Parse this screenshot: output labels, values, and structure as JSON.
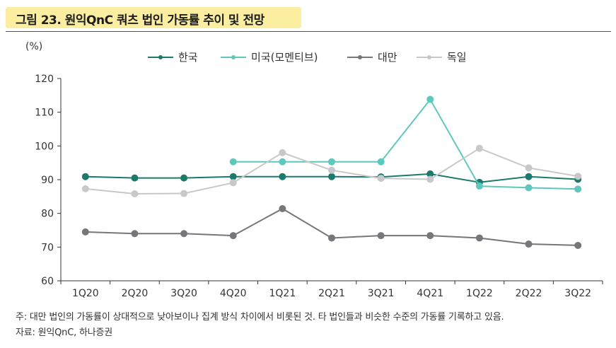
{
  "header": {
    "title": "그림 23. 원익QnC 쿼츠 법인 가동률 추이 및 전망"
  },
  "chart_data": {
    "type": "line",
    "title": "그림 23. 원익QnC 쿼츠 법인 가동률 추이 및 전망",
    "ylabel": "(%)",
    "xlabel": "",
    "ylim": [
      60,
      120
    ],
    "yticks": [
      60,
      70,
      80,
      90,
      100,
      110,
      120
    ],
    "categories": [
      "1Q20",
      "2Q20",
      "3Q20",
      "4Q20",
      "1Q21",
      "2Q21",
      "3Q21",
      "4Q21",
      "1Q22",
      "2Q22",
      "3Q22"
    ],
    "series": [
      {
        "name": "한국",
        "color": "#1c7a6d",
        "values": [
          90.9,
          90.5,
          90.5,
          90.9,
          90.9,
          90.9,
          90.8,
          91.7,
          89.2,
          90.9,
          90.1
        ]
      },
      {
        "name": "미국(모멘티브)",
        "color": "#5fc8bd",
        "values": [
          null,
          null,
          null,
          95.3,
          95.3,
          95.3,
          95.3,
          113.8,
          88.1,
          87.6,
          87.2
        ]
      },
      {
        "name": "대만",
        "color": "#76767b",
        "values": [
          74.5,
          74.0,
          74.0,
          73.4,
          81.4,
          72.7,
          73.4,
          73.4,
          72.7,
          70.9,
          70.5
        ]
      },
      {
        "name": "독일",
        "color": "#c8c8cb",
        "values": [
          87.3,
          85.8,
          85.9,
          89.1,
          98.0,
          92.8,
          90.4,
          90.1,
          99.3,
          93.5,
          91.0
        ]
      }
    ],
    "grid": false,
    "legend_position": "top-center"
  },
  "footer": {
    "note": "주: 대만 법인의 가동률이 상대적으로 낮아보이나 집계 방식 차이에서 비롯된 것. 타 법인들과 비슷한 수준의 가동률 기록하고 있음.",
    "source": "자료: 원익QnC, 하나증권"
  }
}
